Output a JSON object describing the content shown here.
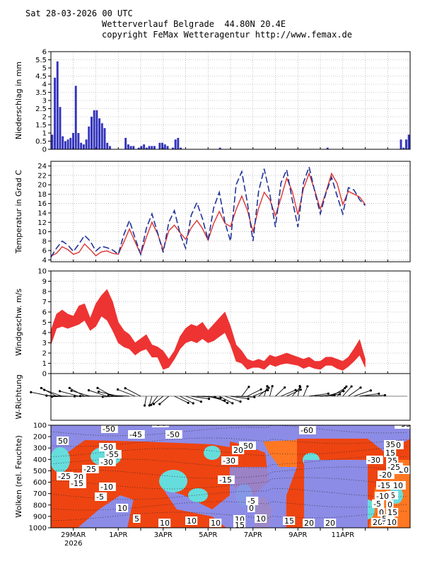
{
  "header": {
    "line1": "Sat 28-03-2026 00 UTC",
    "line2": "Wetterverlauf Belgrade  44.80N 20.4E",
    "line3": "copyright FeMax Wetteragentur http://www.femax.de"
  },
  "colors": {
    "precip": "#3333bb",
    "temp_red": "#dd3333",
    "temp_blue": "#223399",
    "wind": "#ee3333",
    "cloud_bg": "#8c8ce6",
    "cloud_red": "#ee4411",
    "cloud_orange": "#ff7722",
    "cloud_cyan": "#66dddd"
  },
  "chart_data": [
    {
      "type": "bar",
      "name": "precip",
      "ylabel": "Niederschlag in mm",
      "ylim": [
        0,
        6
      ],
      "yticks": [
        "0",
        "0.5",
        "1",
        "1.5",
        "2",
        "2.5",
        "3",
        "3.5",
        "4",
        "4.5",
        "5",
        "5.5",
        "6"
      ],
      "x_step_hours": 3,
      "values": [
        0.9,
        4.4,
        5.4,
        2.6,
        0.8,
        0.5,
        0.6,
        0.7,
        1.0,
        3.9,
        1.0,
        0.4,
        0.3,
        0.6,
        1.4,
        2.0,
        2.4,
        2.4,
        1.9,
        1.6,
        1.3,
        0.4,
        0.2,
        0,
        0,
        0,
        0,
        0,
        0.7,
        0.3,
        0.2,
        0.2,
        0,
        0.1,
        0.2,
        0.3,
        0.1,
        0.2,
        0.2,
        0.2,
        0,
        0.4,
        0.4,
        0.3,
        0.2,
        0,
        0.1,
        0.6,
        0.7,
        0.1,
        0,
        0,
        0,
        0,
        0,
        0,
        0,
        0,
        0,
        0,
        0,
        0,
        0,
        0,
        0.1,
        0,
        0,
        0,
        0,
        0,
        0,
        0,
        0,
        0,
        0,
        0,
        0,
        0,
        0,
        0,
        0,
        0,
        0,
        0,
        0,
        0,
        0,
        0,
        0,
        0,
        0,
        0,
        0,
        0,
        0,
        0,
        0,
        0,
        0,
        0,
        0,
        0,
        0,
        0,
        0,
        0.1,
        0,
        0,
        0,
        0,
        0,
        0,
        0,
        0,
        0,
        0,
        0,
        0,
        0,
        0,
        0,
        0,
        0,
        0,
        0,
        0,
        0,
        0,
        0,
        0,
        0,
        0,
        0,
        0.6,
        0.1,
        0.6,
        0.9
      ]
    },
    {
      "type": "line",
      "name": "temperature",
      "ylabel": "Temperatur in Grad C",
      "ylim": [
        3.6,
        25
      ],
      "yticks": [
        "4",
        "6",
        "8",
        "10",
        "12",
        "14",
        "16",
        "18",
        "20",
        "22",
        "24"
      ],
      "x_step_hours": 6,
      "series": [
        {
          "name": "red",
          "values": [
            4.8,
            5.4,
            6.8,
            6.2,
            5.2,
            5.6,
            7.4,
            6.2,
            4.9,
            5.7,
            5.9,
            5.4,
            5.2,
            7.8,
            10.6,
            7.8,
            5.2,
            8.8,
            12.0,
            9.6,
            6.1,
            10.2,
            11.4,
            9.8,
            8.4,
            10.8,
            12.4,
            10.7,
            8.2,
            11.8,
            14.3,
            11.8,
            11.1,
            14.7,
            17.6,
            14.6,
            10.0,
            15.0,
            18.4,
            16.8,
            13.4,
            17.2,
            21.4,
            18.6,
            13.6,
            19.2,
            22.4,
            18.8,
            14.8,
            18.4,
            22.4,
            20.3,
            15.8,
            18.6,
            18.0,
            17.4,
            15.8
          ]
        },
        {
          "name": "blue_dashed",
          "values": [
            4.6,
            6.5,
            8.0,
            7.2,
            5.8,
            7.4,
            9.2,
            8.0,
            5.9,
            6.9,
            6.6,
            6.1,
            5.2,
            9.4,
            12.4,
            8.6,
            5.2,
            10.7,
            13.8,
            9.8,
            5.6,
            12.0,
            14.5,
            9.6,
            6.5,
            13.5,
            16.2,
            12.8,
            8.2,
            15.1,
            18.4,
            12.0,
            8.0,
            20.0,
            22.8,
            16.2,
            8.0,
            18.6,
            23.4,
            18.0,
            11.0,
            20.4,
            23.2,
            16.8,
            11.0,
            20.5,
            23.8,
            18.6,
            13.8,
            18.2,
            21.6,
            17.6,
            13.8,
            19.4,
            18.9,
            16.8,
            15.6
          ]
        }
      ]
    },
    {
      "type": "area",
      "name": "wind",
      "ylabel": "Windgeschw. m/s",
      "ylim": [
        0,
        10
      ],
      "yticks": [
        "0",
        "1",
        "2",
        "3",
        "4",
        "5",
        "6",
        "7",
        "8",
        "9",
        "10"
      ],
      "x_step_hours": 6,
      "series": [
        {
          "name": "upper",
          "values": [
            4.2,
            5.8,
            6.2,
            5.8,
            5.6,
            6.6,
            6.8,
            5.4,
            6.8,
            7.6,
            8.2,
            7.0,
            5.0,
            4.2,
            3.8,
            3.0,
            3.4,
            3.8,
            2.8,
            2.6,
            2.2,
            1.4,
            2.2,
            3.6,
            4.4,
            4.8,
            4.6,
            5.0,
            4.2,
            4.8,
            5.4,
            6.0,
            4.6,
            2.8,
            2.2,
            1.4,
            1.2,
            1.4,
            1.2,
            1.8,
            1.6,
            1.8,
            2.0,
            1.8,
            1.6,
            1.4,
            1.6,
            1.2,
            1.2,
            1.6,
            1.6,
            1.4,
            1.2,
            1.6,
            2.4,
            3.3,
            1.4
          ]
        },
        {
          "name": "lower",
          "values": [
            2.8,
            4.4,
            4.6,
            4.4,
            4.6,
            4.8,
            5.2,
            4.2,
            4.6,
            5.6,
            5.2,
            4.2,
            3.0,
            2.6,
            2.4,
            1.8,
            2.2,
            2.4,
            1.6,
            1.6,
            0.4,
            0.6,
            1.4,
            2.4,
            3.0,
            3.2,
            3.0,
            3.4,
            3.0,
            3.2,
            3.6,
            4.0,
            2.8,
            1.2,
            1.0,
            0.4,
            0.6,
            0.6,
            0.4,
            0.9,
            0.7,
            0.9,
            1.0,
            0.9,
            0.8,
            0.5,
            0.7,
            0.5,
            0.4,
            0.8,
            0.8,
            0.5,
            0.3,
            0.7,
            1.2,
            1.8,
            0.6
          ]
        }
      ]
    },
    {
      "type": "scatter",
      "name": "wind_direction",
      "ylabel": "W-Richtung",
      "note": "wind direction arrows, one per time step"
    },
    {
      "type": "heatmap",
      "name": "clouds",
      "ylabel": "Wolken (rel. Feuchte)",
      "ylim": [
        1000,
        100
      ],
      "yticks": [
        "1000",
        "900",
        "800",
        "700",
        "600",
        "500",
        "400",
        "300",
        "200",
        "100"
      ],
      "x_labels": [
        "29MAR",
        "1APR",
        "3APR",
        "5APR",
        "7APR",
        "9APR",
        "11APR"
      ],
      "x_year": "2026",
      "contour_labels": [
        "-50",
        "-45",
        "-50",
        "-50",
        "-50",
        "-60",
        "-55",
        "50",
        "-50",
        "-55",
        "-35",
        "-30",
        "-50",
        "-30",
        "-30",
        "-25",
        "-20",
        "-25",
        "-20",
        "-15",
        "-15",
        "-10",
        "-10",
        "-5",
        "-5",
        "-5",
        "0",
        "0",
        "5",
        "5",
        "10",
        "10",
        "10",
        "10",
        "10",
        "15",
        "15",
        "20",
        "20",
        "20",
        "15",
        "15",
        "25",
        "-30",
        "-25",
        "-20",
        "-15",
        "-10",
        "-5",
        "0",
        "5",
        "10",
        "15",
        "-35",
        "-15",
        "20",
        "35",
        "10"
      ]
    }
  ]
}
